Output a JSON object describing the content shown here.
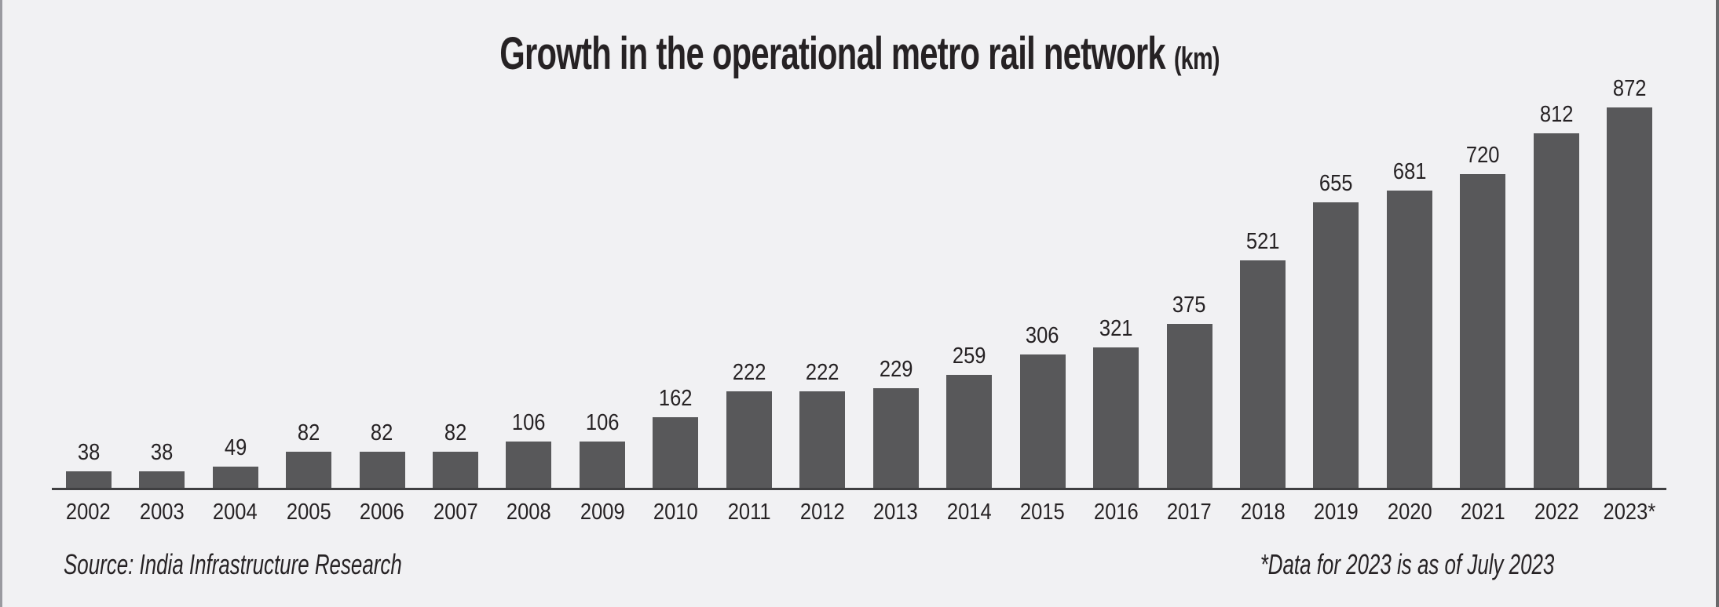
{
  "title": {
    "main": "Growth in the operational metro rail network",
    "unit": "(km)"
  },
  "chart_data": {
    "type": "bar",
    "title": "Growth in the operational metro rail network (km)",
    "categories": [
      "2002",
      "2003",
      "2004",
      "2005",
      "2006",
      "2007",
      "2008",
      "2009",
      "2010",
      "2011",
      "2012",
      "2013",
      "2014",
      "2015",
      "2016",
      "2017",
      "2018",
      "2019",
      "2020",
      "2021",
      "2022",
      "2023*"
    ],
    "values": [
      38,
      38,
      49,
      82,
      82,
      82,
      106,
      106,
      162,
      222,
      222,
      229,
      259,
      306,
      321,
      375,
      521,
      655,
      681,
      720,
      812,
      872
    ],
    "xlabel": "",
    "ylabel": "km",
    "ylim": [
      0,
      900
    ],
    "grid": false,
    "legend": "none",
    "value_labels": "above bars"
  },
  "footer": {
    "source": "Source: India Infrastructure Research",
    "footnote": "*Data for 2023 is as of July 2023"
  },
  "colors": {
    "background": "#f1f1f3",
    "bar": "#58585a",
    "text": "#262224",
    "axis": "#3f3f41"
  }
}
